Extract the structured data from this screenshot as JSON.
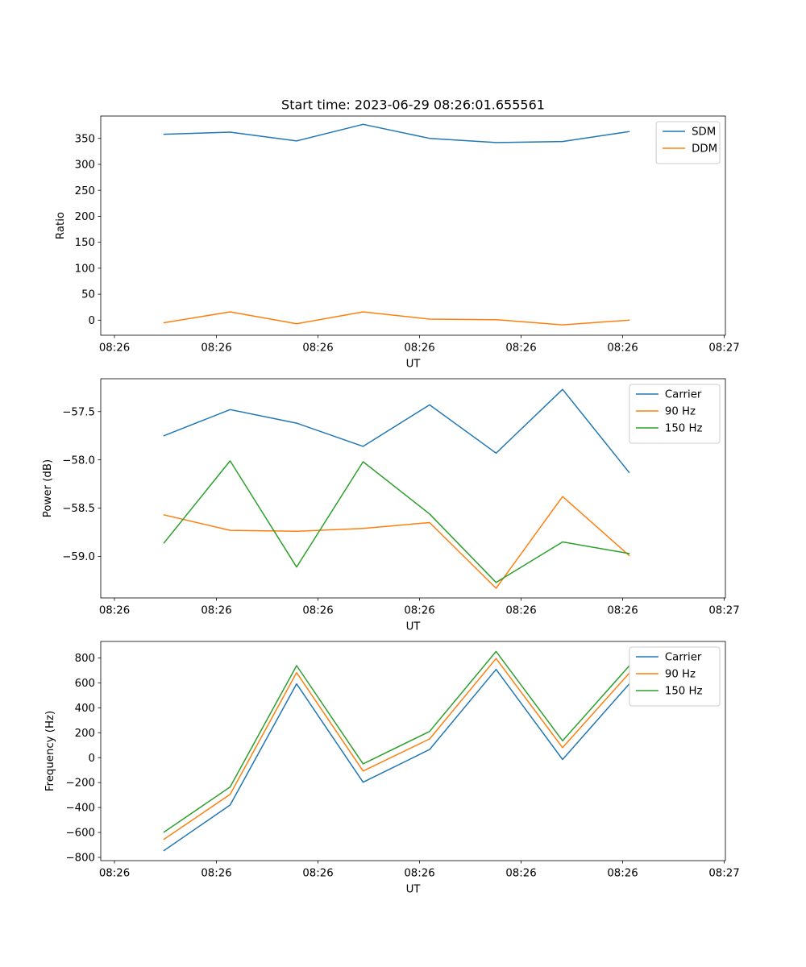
{
  "figure": {
    "title": "Start time: 2023-06-29 08:26:01.655561"
  },
  "chart_data": [
    {
      "type": "line",
      "title": "Start time: 2023-06-29 08:26:01.655561",
      "xlabel": "UT",
      "ylabel": "Ratio",
      "x_ticks": [
        "08:26",
        "08:26",
        "08:26",
        "08:26",
        "08:26",
        "08:26",
        "08:27"
      ],
      "y_ticks": [
        0,
        50,
        100,
        150,
        200,
        250,
        300,
        350
      ],
      "ylim": [
        -29,
        393
      ],
      "grid": false,
      "legend_position": "top-right",
      "series": [
        {
          "name": "SDM",
          "color": "#1f77b4",
          "values": [
            358,
            362,
            345,
            377,
            350,
            342,
            344,
            363
          ]
        },
        {
          "name": "DDM",
          "color": "#ff7f0e",
          "values": [
            -5,
            16,
            -7,
            16,
            2,
            1,
            -9,
            0
          ]
        }
      ]
    },
    {
      "type": "line",
      "title": "",
      "xlabel": "UT",
      "ylabel": "Power (dB)",
      "x_ticks": [
        "08:26",
        "08:26",
        "08:26",
        "08:26",
        "08:26",
        "08:26",
        "08:27"
      ],
      "y_ticks": [
        -57.5,
        -58.0,
        -58.5,
        -59.0
      ],
      "y_tick_labels": [
        "−57.5",
        "−58.0",
        "−58.5",
        "−59.0"
      ],
      "ylim": [
        -59.43,
        -57.16
      ],
      "grid": false,
      "legend_position": "top-right",
      "series": [
        {
          "name": "Carrier",
          "color": "#1f77b4",
          "values": [
            -57.75,
            -57.48,
            -57.62,
            -57.86,
            -57.43,
            -57.93,
            -57.27,
            -58.13
          ]
        },
        {
          "name": "90 Hz",
          "color": "#ff7f0e",
          "values": [
            -58.57,
            -58.73,
            -58.74,
            -58.71,
            -58.65,
            -59.33,
            -58.38,
            -58.99
          ]
        },
        {
          "name": "150 Hz",
          "color": "#2ca02c",
          "values": [
            -58.86,
            -58.01,
            -59.11,
            -58.02,
            -58.56,
            -59.27,
            -58.85,
            -58.97
          ]
        }
      ]
    },
    {
      "type": "line",
      "title": "",
      "xlabel": "UT",
      "ylabel": "Frequency (Hz)",
      "x_ticks": [
        "08:26",
        "08:26",
        "08:26",
        "08:26",
        "08:26",
        "08:26",
        "08:27"
      ],
      "y_ticks": [
        -800,
        -600,
        -400,
        -200,
        0,
        200,
        400,
        600,
        800
      ],
      "y_tick_labels": [
        "−800",
        "−600",
        "−400",
        "−200",
        "0",
        "200",
        "400",
        "600",
        "800"
      ],
      "ylim": [
        -826,
        932
      ],
      "grid": false,
      "legend_position": "top-right",
      "series": [
        {
          "name": "Carrier",
          "color": "#1f77b4",
          "values": [
            -745,
            -380,
            592,
            -197,
            65,
            708,
            -15,
            590
          ]
        },
        {
          "name": "90 Hz",
          "color": "#ff7f0e",
          "values": [
            -655,
            -295,
            682,
            -107,
            150,
            795,
            80,
            677
          ]
        },
        {
          "name": "150 Hz",
          "color": "#2ca02c",
          "values": [
            -597,
            -235,
            738,
            -50,
            210,
            852,
            135,
            735
          ]
        }
      ]
    }
  ]
}
